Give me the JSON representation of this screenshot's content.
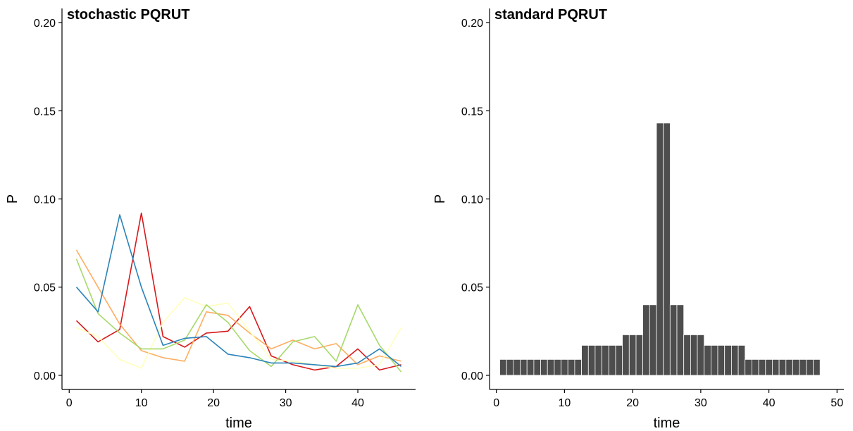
{
  "chart_data": [
    {
      "type": "line",
      "title": "stochastic PQRUT",
      "xlabel": "time",
      "ylabel": "P",
      "xlim": [
        -1,
        48
      ],
      "ylim": [
        -0.008,
        0.208
      ],
      "xticks": [
        0,
        10,
        20,
        30,
        40
      ],
      "yticks": [
        0.0,
        0.05,
        0.1,
        0.15,
        0.2
      ],
      "ytick_labels": [
        "0.00",
        "0.05",
        "0.10",
        "0.15",
        "0.20"
      ],
      "grid": false,
      "legend": "none",
      "series": [
        {
          "color": "#d7191c",
          "x": [
            1,
            4,
            7,
            10,
            13,
            16,
            19,
            22,
            25,
            28,
            31,
            34,
            37,
            40,
            43,
            46
          ],
          "y": [
            0.031,
            0.019,
            0.026,
            0.092,
            0.022,
            0.016,
            0.024,
            0.025,
            0.039,
            0.011,
            0.006,
            0.003,
            0.005,
            0.015,
            0.003,
            0.006
          ]
        },
        {
          "color": "#fdae61",
          "x": [
            1,
            4,
            7,
            10,
            13,
            16,
            19,
            22,
            25,
            28,
            31,
            34,
            37,
            40,
            43,
            46
          ],
          "y": [
            0.071,
            0.05,
            0.029,
            0.014,
            0.01,
            0.008,
            0.036,
            0.034,
            0.024,
            0.015,
            0.02,
            0.015,
            0.018,
            0.006,
            0.011,
            0.008
          ]
        },
        {
          "color": "#ffffbf",
          "x": [
            1,
            4,
            7,
            10,
            13,
            16,
            19,
            22,
            25,
            28,
            31,
            34,
            37,
            40,
            43,
            46
          ],
          "y": [
            0.027,
            0.022,
            0.009,
            0.004,
            0.03,
            0.044,
            0.039,
            0.041,
            0.025,
            0.009,
            0.008,
            0.006,
            0.004,
            0.004,
            0.006,
            0.027
          ]
        },
        {
          "color": "#a6d96a",
          "x": [
            1,
            4,
            7,
            10,
            13,
            16,
            19,
            22,
            25,
            28,
            31,
            34,
            37,
            40,
            43,
            46
          ],
          "y": [
            0.066,
            0.035,
            0.024,
            0.015,
            0.015,
            0.02,
            0.04,
            0.03,
            0.014,
            0.005,
            0.019,
            0.022,
            0.008,
            0.04,
            0.017,
            0.002
          ]
        },
        {
          "color": "#2b83ba",
          "x": [
            1,
            4,
            7,
            10,
            13,
            16,
            19,
            22,
            25,
            28,
            31,
            34,
            37,
            40,
            43,
            46
          ],
          "y": [
            0.05,
            0.036,
            0.091,
            0.05,
            0.017,
            0.021,
            0.022,
            0.012,
            0.01,
            0.007,
            0.007,
            0.006,
            0.005,
            0.007,
            0.015,
            0.005
          ]
        }
      ]
    },
    {
      "type": "bar",
      "title": "standard PQRUT",
      "xlabel": "time",
      "ylabel": "P",
      "xlim": [
        -1,
        51
      ],
      "ylim": [
        -0.008,
        0.208
      ],
      "xticks": [
        0,
        10,
        20,
        30,
        40,
        50
      ],
      "yticks": [
        0.0,
        0.05,
        0.1,
        0.15,
        0.2
      ],
      "ytick_labels": [
        "0.00",
        "0.05",
        "0.10",
        "0.15",
        "0.20"
      ],
      "grid": false,
      "legend": "none",
      "bar_color": "#4d4d4d",
      "x": [
        1,
        2,
        3,
        4,
        5,
        6,
        7,
        8,
        9,
        10,
        11,
        12,
        13,
        14,
        15,
        16,
        17,
        18,
        19,
        20,
        21,
        22,
        23,
        24,
        25,
        26,
        27,
        28,
        29,
        30,
        31,
        32,
        33,
        34,
        35,
        36,
        37,
        38,
        39,
        40,
        41,
        42,
        43,
        44,
        45,
        46,
        47
      ],
      "values": [
        0.009,
        0.009,
        0.009,
        0.009,
        0.009,
        0.009,
        0.009,
        0.009,
        0.009,
        0.009,
        0.009,
        0.009,
        0.017,
        0.017,
        0.017,
        0.017,
        0.017,
        0.017,
        0.023,
        0.023,
        0.023,
        0.04,
        0.04,
        0.143,
        0.143,
        0.04,
        0.04,
        0.023,
        0.023,
        0.023,
        0.017,
        0.017,
        0.017,
        0.017,
        0.017,
        0.017,
        0.009,
        0.009,
        0.009,
        0.009,
        0.009,
        0.009,
        0.009,
        0.009,
        0.009,
        0.009,
        0.009
      ]
    }
  ]
}
